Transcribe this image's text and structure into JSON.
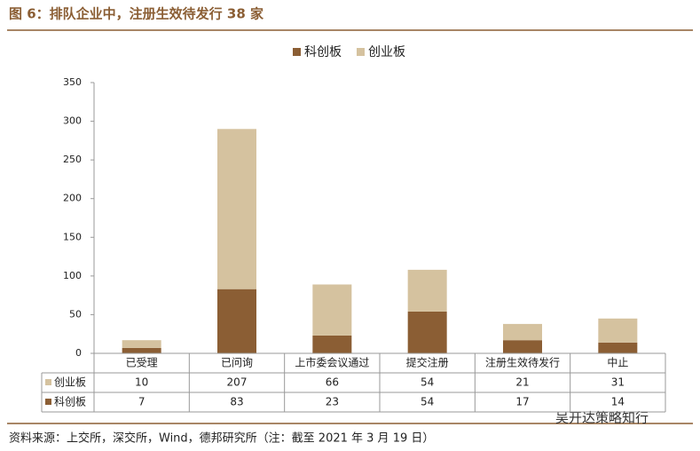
{
  "chart_data": {
    "type": "bar",
    "stacked": true,
    "title": "图 6：排队企业中，注册生效待发行 38 家",
    "categories": [
      "已受理",
      "已问询",
      "上市委会议通过",
      "提交注册",
      "注册生效待发行",
      "中止"
    ],
    "series": [
      {
        "name": "科创板",
        "color": "#8b5e34",
        "values": [
          7,
          83,
          23,
          54,
          17,
          14
        ]
      },
      {
        "name": "创业板",
        "color": "#d5c29f",
        "values": [
          10,
          207,
          66,
          54,
          21,
          31
        ]
      }
    ],
    "ylim": [
      0,
      350
    ],
    "yticks": [
      0,
      50,
      100,
      150,
      200,
      250,
      300,
      350
    ],
    "legend": "top",
    "data_table": true,
    "source": "资料来源：上交所，深交所，Wind，德邦研究所（注：截至 2021 年 3 月 19 日）",
    "watermark": "吴开达策略知行"
  }
}
